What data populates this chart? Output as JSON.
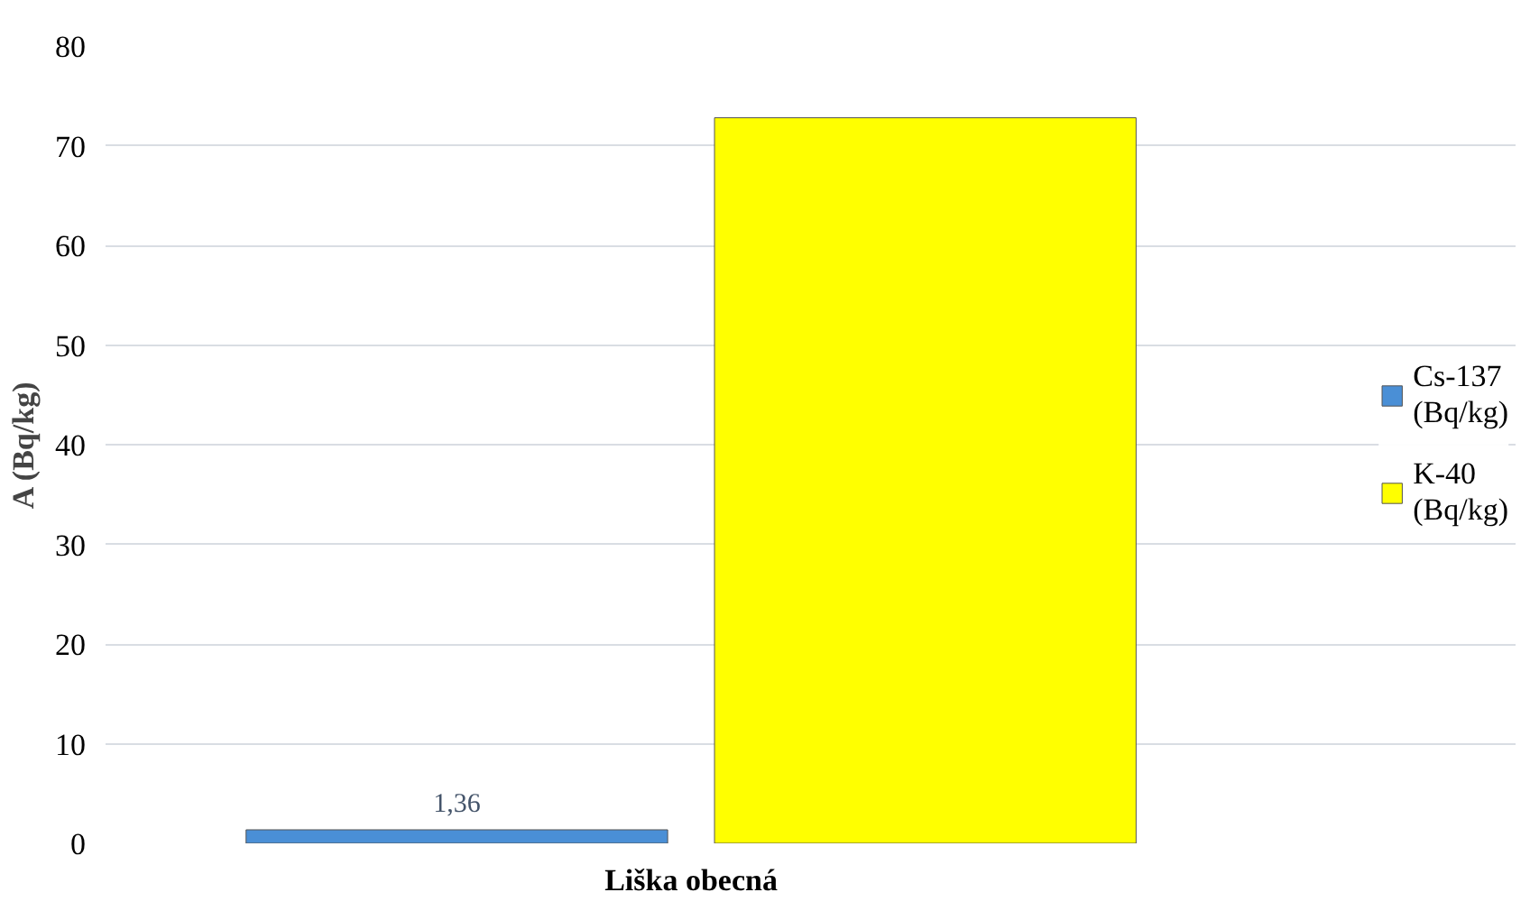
{
  "chart_data": {
    "type": "bar",
    "ylabel": "A (Bq/kg)",
    "categories": [
      "Liška obecná"
    ],
    "series": [
      {
        "name": "Cs-137 (Bq/kg)",
        "color": "#4a8fd6",
        "values": [
          1.36
        ],
        "value_labels": [
          "1,36"
        ]
      },
      {
        "name": "K-40 (Bq/kg)",
        "color": "#ffff00",
        "values": [
          72.8
        ],
        "value_labels": [
          null
        ]
      }
    ],
    "ylim": [
      0,
      80
    ],
    "yticks": [
      0,
      10,
      20,
      30,
      40,
      50,
      60,
      70,
      80
    ],
    "grid": "y",
    "legend": "right"
  }
}
